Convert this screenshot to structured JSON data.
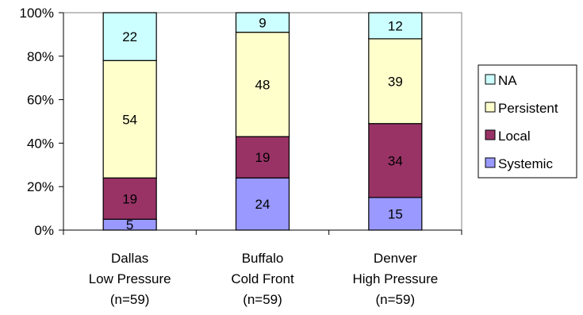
{
  "chart_data": {
    "type": "bar",
    "stacked": true,
    "percent_stacked": true,
    "categories": [
      [
        "Dallas",
        "Low Pressure",
        "(n=59)"
      ],
      [
        "Buffalo",
        "Cold Front",
        "(n=59)"
      ],
      [
        "Denver",
        "High Pressure",
        "(n=59)"
      ]
    ],
    "series": [
      {
        "name": "Systemic",
        "color": "#9999FF",
        "values": [
          5,
          24,
          15
        ]
      },
      {
        "name": "Local",
        "color": "#993366",
        "values": [
          19,
          19,
          34
        ]
      },
      {
        "name": "Persistent",
        "color": "#FFFFCC",
        "values": [
          54,
          48,
          39
        ]
      },
      {
        "name": "NA",
        "color": "#CCFFFF",
        "values": [
          22,
          9,
          12
        ]
      }
    ],
    "legend_order": [
      "NA",
      "Persistent",
      "Local",
      "Systemic"
    ],
    "yticks": [
      "0%",
      "20%",
      "40%",
      "60%",
      "80%",
      "100%"
    ],
    "ylim": [
      0,
      100
    ],
    "legend_position": "right",
    "grid": false
  }
}
